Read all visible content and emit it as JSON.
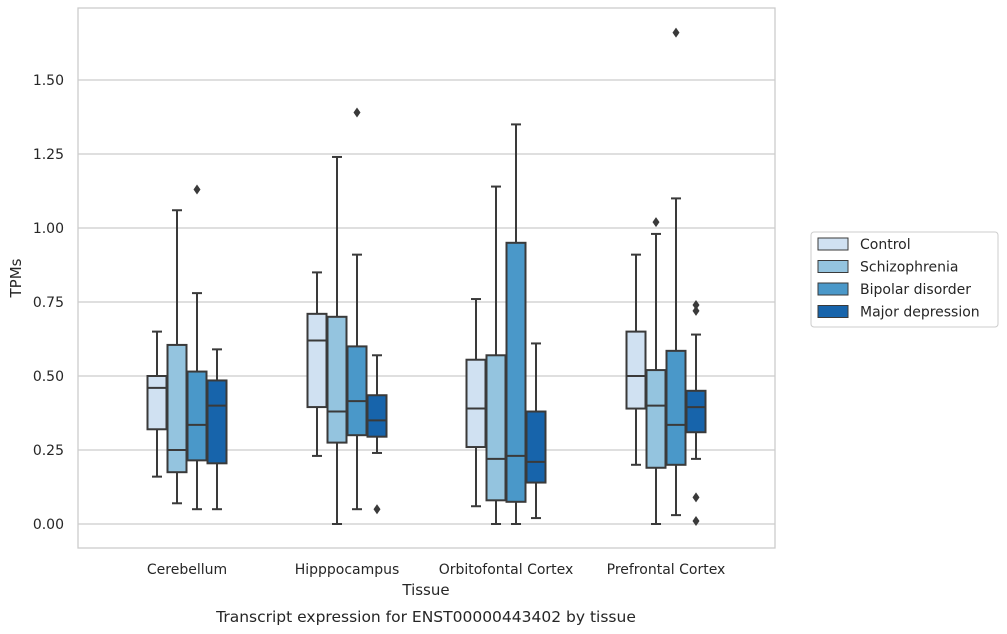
{
  "chart_data": {
    "type": "box",
    "xlabel": "Tissue",
    "ylabel": "TPMs",
    "caption": "Transcript expression for ENST00000443402 by tissue",
    "ylim": [
      -0.08,
      1.75
    ],
    "yticks": [
      0.0,
      0.25,
      0.5,
      0.75,
      1.0,
      1.25,
      1.5
    ],
    "ytick_labels": [
      "0.00",
      "0.25",
      "0.50",
      "0.75",
      "1.00",
      "1.25",
      "1.50"
    ],
    "grid": "horizontal",
    "legend_position": "right-outside",
    "categories": [
      "Cerebellum",
      "Hipppocampus",
      "Orbitofontal Cortex",
      "Prefrontal Cortex"
    ],
    "series": [
      {
        "name": "Control",
        "color": "#d0e1f2",
        "boxes": [
          {
            "whisker_low": 0.16,
            "q1": 0.32,
            "median": 0.46,
            "q3": 0.5,
            "whisker_high": 0.65,
            "outliers": []
          },
          {
            "whisker_low": 0.23,
            "q1": 0.395,
            "median": 0.62,
            "q3": 0.71,
            "whisker_high": 0.85,
            "outliers": []
          },
          {
            "whisker_low": 0.06,
            "q1": 0.26,
            "median": 0.39,
            "q3": 0.555,
            "whisker_high": 0.76,
            "outliers": []
          },
          {
            "whisker_low": 0.2,
            "q1": 0.39,
            "median": 0.5,
            "q3": 0.65,
            "whisker_high": 0.91,
            "outliers": []
          }
        ]
      },
      {
        "name": "Schizophrenia",
        "color": "#94c4df",
        "boxes": [
          {
            "whisker_low": 0.07,
            "q1": 0.175,
            "median": 0.25,
            "q3": 0.605,
            "whisker_high": 1.06,
            "outliers": []
          },
          {
            "whisker_low": 0.0,
            "q1": 0.275,
            "median": 0.38,
            "q3": 0.7,
            "whisker_high": 1.24,
            "outliers": []
          },
          {
            "whisker_low": 0.0,
            "q1": 0.08,
            "median": 0.22,
            "q3": 0.57,
            "whisker_high": 1.14,
            "outliers": []
          },
          {
            "whisker_low": 0.0,
            "q1": 0.19,
            "median": 0.4,
            "q3": 0.52,
            "whisker_high": 0.98,
            "outliers": [
              1.02
            ]
          }
        ]
      },
      {
        "name": "Bipolar disorder",
        "color": "#4a98c9",
        "boxes": [
          {
            "whisker_low": 0.05,
            "q1": 0.215,
            "median": 0.335,
            "q3": 0.515,
            "whisker_high": 0.78,
            "outliers": [
              1.13
            ]
          },
          {
            "whisker_low": 0.05,
            "q1": 0.3,
            "median": 0.415,
            "q3": 0.6,
            "whisker_high": 0.91,
            "outliers": [
              1.39
            ]
          },
          {
            "whisker_low": 0.0,
            "q1": 0.075,
            "median": 0.23,
            "q3": 0.95,
            "whisker_high": 1.35,
            "outliers": []
          },
          {
            "whisker_low": 0.03,
            "q1": 0.2,
            "median": 0.335,
            "q3": 0.585,
            "whisker_high": 1.1,
            "outliers": [
              1.66
            ]
          }
        ]
      },
      {
        "name": "Major depression",
        "color": "#1764ab",
        "boxes": [
          {
            "whisker_low": 0.05,
            "q1": 0.205,
            "median": 0.4,
            "q3": 0.485,
            "whisker_high": 0.59,
            "outliers": []
          },
          {
            "whisker_low": 0.24,
            "q1": 0.295,
            "median": 0.35,
            "q3": 0.435,
            "whisker_high": 0.57,
            "outliers": [
              0.05
            ]
          },
          {
            "whisker_low": 0.02,
            "q1": 0.14,
            "median": 0.21,
            "q3": 0.38,
            "whisker_high": 0.61,
            "outliers": []
          },
          {
            "whisker_low": 0.22,
            "q1": 0.31,
            "median": 0.395,
            "q3": 0.45,
            "whisker_high": 0.64,
            "outliers": [
              0.72,
              0.74,
              0.09,
              0.01
            ]
          }
        ]
      }
    ],
    "colors": {
      "grid": "#cccccc",
      "axes_edge": "#cccccc",
      "box_edge": "#3a3a3a",
      "text": "#262626"
    }
  }
}
